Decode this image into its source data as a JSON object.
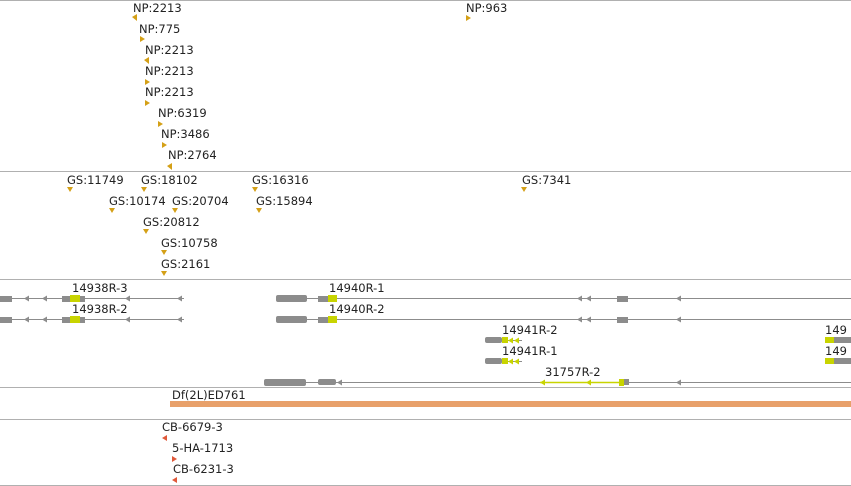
{
  "colors": {
    "feature_marker": "#d4a017",
    "gene_body": "#8c8c8c",
    "coding_highlight": "#c8d400",
    "deficiency_bar": "#e8a06a",
    "cb_marker": "#e0593a",
    "track_divider": "#b0b0b0",
    "text": "#222222"
  },
  "tracks": {
    "np": {
      "features": [
        {
          "label": "NP:2213",
          "dir": "left"
        },
        {
          "label": "NP:775",
          "dir": "right"
        },
        {
          "label": "NP:2213",
          "dir": "left"
        },
        {
          "label": "NP:2213",
          "dir": "right"
        },
        {
          "label": "NP:2213",
          "dir": "right"
        },
        {
          "label": "NP:6319",
          "dir": "right"
        },
        {
          "label": "NP:3486",
          "dir": "right"
        },
        {
          "label": "NP:2764",
          "dir": "left"
        },
        {
          "label": "NP:963",
          "dir": "right"
        }
      ]
    },
    "gs": {
      "features": [
        {
          "label": "GS:11749"
        },
        {
          "label": "GS:18102"
        },
        {
          "label": "GS:16316"
        },
        {
          "label": "GS:7341"
        },
        {
          "label": "GS:10174"
        },
        {
          "label": "GS:20704"
        },
        {
          "label": "GS:15894"
        },
        {
          "label": "GS:20812"
        },
        {
          "label": "GS:10758"
        },
        {
          "label": "GS:2161"
        }
      ]
    },
    "genes": {
      "transcripts": [
        {
          "label": "14938R-3"
        },
        {
          "label": "14938R-2"
        },
        {
          "label": "14940R-1"
        },
        {
          "label": "14940R-2"
        },
        {
          "label": "14941R-2"
        },
        {
          "label": "14941R-1"
        },
        {
          "label": "31757R-2"
        },
        {
          "label": "149"
        },
        {
          "label": "149"
        }
      ]
    },
    "deficiency": {
      "label": "Df(2L)ED761"
    },
    "cb": {
      "features": [
        {
          "label": "CB-6679-3",
          "dir": "left"
        },
        {
          "label": "5-HA-1713",
          "dir": "right"
        },
        {
          "label": "CB-6231-3",
          "dir": "left"
        }
      ]
    }
  }
}
